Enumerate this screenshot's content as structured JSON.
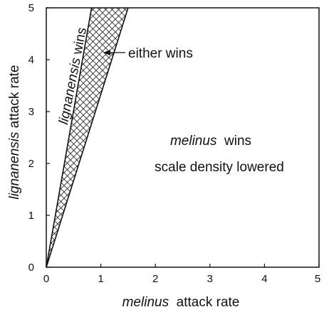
{
  "chart_data": {
    "type": "area",
    "xlabel": {
      "italic": "melinus",
      "rest": "attack rate"
    },
    "ylabel": {
      "italic": "lignanensis",
      "rest": "attack rate"
    },
    "xlim": [
      0,
      5
    ],
    "ylim": [
      0,
      5
    ],
    "x_ticks": [
      "0",
      "1",
      "2",
      "3",
      "4",
      "5"
    ],
    "y_ticks": [
      "0",
      "1",
      "2",
      "3",
      "4",
      "5"
    ],
    "boundaries": [
      {
        "x": [
          0,
          0.83
        ],
        "y": [
          0,
          5
        ]
      },
      {
        "x": [
          0,
          1.5
        ],
        "y": [
          0,
          5
        ]
      }
    ],
    "hatched_region": "between boundaries",
    "annotations": {
      "lignanensis_region": {
        "italic": "lignanensis",
        "rest": "wins"
      },
      "either_region": "either wins",
      "melinus_region_line1": {
        "italic": "melinus",
        "rest": "wins"
      },
      "melinus_region_line2": "scale density lowered"
    },
    "grid": false,
    "legend": "none"
  }
}
